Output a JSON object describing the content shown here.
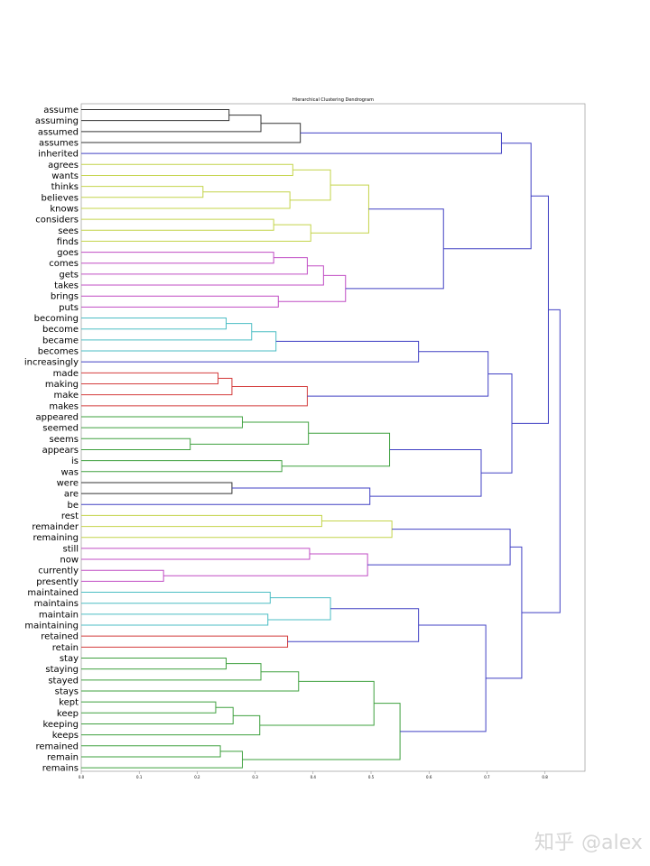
{
  "chart_data": {
    "type": "dendrogram",
    "title": "Hierarchical Clustering Dendrogram",
    "orientation": "horizontal",
    "xlim": [
      0,
      0.87
    ],
    "xticks": [
      "0.0",
      "0.1",
      "0.2",
      "0.3",
      "0.4",
      "0.5",
      "0.6",
      "0.7",
      "0.8"
    ],
    "colors": {
      "black": "#333333",
      "yellow": "#c4d44a",
      "magenta": "#c04cc4",
      "cyan": "#4bbdc4",
      "red": "#d43c3c",
      "green": "#3ea03e",
      "blue": "#4040c4",
      "frame": "#888888"
    },
    "leaves": [
      "assume",
      "assuming",
      "assumed",
      "assumes",
      "inherited",
      "agrees",
      "wants",
      "thinks",
      "believes",
      "knows",
      "considers",
      "sees",
      "finds",
      "goes",
      "comes",
      "gets",
      "takes",
      "brings",
      "puts",
      "becoming",
      "become",
      "became",
      "becomes",
      "increasingly",
      "made",
      "making",
      "make",
      "makes",
      "appeared",
      "seemed",
      "seems",
      "appears",
      "is",
      "was",
      "were",
      "are",
      "be",
      "rest",
      "remainder",
      "remaining",
      "still",
      "now",
      "currently",
      "presently",
      "maintained",
      "maintains",
      "maintain",
      "maintaining",
      "retained",
      "retain",
      "stay",
      "staying",
      "stayed",
      "stays",
      "kept",
      "keep",
      "keeping",
      "keeps",
      "remained",
      "remain",
      "remains"
    ],
    "merges": [
      {
        "id": "c1",
        "left": "assume",
        "right": "assuming",
        "height": 0.255,
        "color": "black"
      },
      {
        "id": "c2",
        "left": "c1",
        "right": "assumed",
        "height": 0.31,
        "color": "black"
      },
      {
        "id": "c3",
        "left": "c2",
        "right": "assumes",
        "height": 0.378,
        "color": "black"
      },
      {
        "id": "c4",
        "left": "c3",
        "right": "inherited",
        "height": 0.725,
        "color": "blue"
      },
      {
        "id": "c5",
        "left": "agrees",
        "right": "wants",
        "height": 0.365,
        "color": "yellow"
      },
      {
        "id": "c6",
        "left": "thinks",
        "right": "believes",
        "height": 0.21,
        "color": "yellow"
      },
      {
        "id": "c7",
        "left": "c6",
        "right": "knows",
        "height": 0.36,
        "color": "yellow"
      },
      {
        "id": "c8",
        "left": "c5",
        "right": "c7",
        "height": 0.43,
        "color": "yellow"
      },
      {
        "id": "c9",
        "left": "considers",
        "right": "sees",
        "height": 0.332,
        "color": "yellow"
      },
      {
        "id": "c10",
        "left": "c9",
        "right": "finds",
        "height": 0.396,
        "color": "yellow"
      },
      {
        "id": "c11",
        "left": "c8",
        "right": "c10",
        "height": 0.496,
        "color": "yellow"
      },
      {
        "id": "c12",
        "left": "goes",
        "right": "comes",
        "height": 0.332,
        "color": "magenta"
      },
      {
        "id": "c13",
        "left": "c12",
        "right": "gets",
        "height": 0.39,
        "color": "magenta"
      },
      {
        "id": "c14",
        "left": "c13",
        "right": "takes",
        "height": 0.418,
        "color": "magenta"
      },
      {
        "id": "c15",
        "left": "brings",
        "right": "puts",
        "height": 0.34,
        "color": "magenta"
      },
      {
        "id": "c16",
        "left": "c14",
        "right": "c15",
        "height": 0.456,
        "color": "magenta"
      },
      {
        "id": "c17",
        "left": "c11",
        "right": "c16",
        "height": 0.625,
        "color": "blue"
      },
      {
        "id": "c18",
        "left": "c4",
        "right": "c17",
        "height": 0.776,
        "color": "blue"
      },
      {
        "id": "c19",
        "left": "becoming",
        "right": "become",
        "height": 0.25,
        "color": "cyan"
      },
      {
        "id": "c20",
        "left": "c19",
        "right": "became",
        "height": 0.294,
        "color": "cyan"
      },
      {
        "id": "c21",
        "left": "c20",
        "right": "becomes",
        "height": 0.336,
        "color": "cyan"
      },
      {
        "id": "c22",
        "left": "c21",
        "right": "increasingly",
        "height": 0.582,
        "color": "blue"
      },
      {
        "id": "c23",
        "left": "made",
        "right": "making",
        "height": 0.236,
        "color": "red"
      },
      {
        "id": "c24",
        "left": "c23",
        "right": "make",
        "height": 0.26,
        "color": "red"
      },
      {
        "id": "c25",
        "left": "c24",
        "right": "makes",
        "height": 0.39,
        "color": "red"
      },
      {
        "id": "c26",
        "left": "c22",
        "right": "c25",
        "height": 0.702,
        "color": "blue"
      },
      {
        "id": "c27",
        "left": "appeared",
        "right": "seemed",
        "height": 0.278,
        "color": "green"
      },
      {
        "id": "c28",
        "left": "seems",
        "right": "appears",
        "height": 0.188,
        "color": "green"
      },
      {
        "id": "c29",
        "left": "c27",
        "right": "c28",
        "height": 0.392,
        "color": "green"
      },
      {
        "id": "c30",
        "left": "is",
        "right": "was",
        "height": 0.346,
        "color": "green"
      },
      {
        "id": "c31",
        "left": "c29",
        "right": "c30",
        "height": 0.532,
        "color": "green"
      },
      {
        "id": "c32",
        "left": "were",
        "right": "are",
        "height": 0.26,
        "color": "black"
      },
      {
        "id": "c33",
        "left": "c32",
        "right": "be",
        "height": 0.498,
        "color": "blue"
      },
      {
        "id": "c34",
        "left": "c31",
        "right": "c33",
        "height": 0.69,
        "color": "blue"
      },
      {
        "id": "c35",
        "left": "c26",
        "right": "c34",
        "height": 0.743,
        "color": "blue"
      },
      {
        "id": "c36",
        "left": "c18",
        "right": "c35",
        "height": 0.806,
        "color": "blue"
      },
      {
        "id": "c37",
        "left": "rest",
        "right": "remainder",
        "height": 0.415,
        "color": "yellow"
      },
      {
        "id": "c38",
        "left": "c37",
        "right": "remaining",
        "height": 0.536,
        "color": "yellow"
      },
      {
        "id": "c39",
        "left": "still",
        "right": "now",
        "height": 0.394,
        "color": "magenta"
      },
      {
        "id": "c40",
        "left": "currently",
        "right": "presently",
        "height": 0.142,
        "color": "magenta"
      },
      {
        "id": "c41",
        "left": "c39",
        "right": "c40",
        "height": 0.494,
        "color": "magenta"
      },
      {
        "id": "c42",
        "left": "c38",
        "right": "c41",
        "height": 0.74,
        "color": "blue"
      },
      {
        "id": "c43",
        "left": "maintained",
        "right": "maintains",
        "height": 0.326,
        "color": "cyan"
      },
      {
        "id": "c44",
        "left": "maintain",
        "right": "maintaining",
        "height": 0.322,
        "color": "cyan"
      },
      {
        "id": "c45",
        "left": "c43",
        "right": "c44",
        "height": 0.43,
        "color": "cyan"
      },
      {
        "id": "c46",
        "left": "retained",
        "right": "retain",
        "height": 0.356,
        "color": "red"
      },
      {
        "id": "c47",
        "left": "c45",
        "right": "c46",
        "height": 0.582,
        "color": "blue"
      },
      {
        "id": "c48",
        "left": "stay",
        "right": "staying",
        "height": 0.25,
        "color": "green"
      },
      {
        "id": "c49",
        "left": "c48",
        "right": "stayed",
        "height": 0.31,
        "color": "green"
      },
      {
        "id": "c50",
        "left": "c49",
        "right": "stays",
        "height": 0.375,
        "color": "green"
      },
      {
        "id": "c51",
        "left": "kept",
        "right": "keep",
        "height": 0.232,
        "color": "green"
      },
      {
        "id": "c52",
        "left": "c51",
        "right": "keeping",
        "height": 0.262,
        "color": "green"
      },
      {
        "id": "c53",
        "left": "c52",
        "right": "keeps",
        "height": 0.308,
        "color": "green"
      },
      {
        "id": "c54",
        "left": "c50",
        "right": "c53",
        "height": 0.505,
        "color": "green"
      },
      {
        "id": "c55",
        "left": "remained",
        "right": "remain",
        "height": 0.24,
        "color": "green"
      },
      {
        "id": "c56",
        "left": "c55",
        "right": "remains",
        "height": 0.278,
        "color": "green"
      },
      {
        "id": "c57",
        "left": "c54",
        "right": "c56",
        "height": 0.55,
        "color": "green"
      },
      {
        "id": "c58",
        "left": "c47",
        "right": "c57",
        "height": 0.698,
        "color": "blue"
      },
      {
        "id": "c59",
        "left": "c42",
        "right": "c58",
        "height": 0.76,
        "color": "blue"
      },
      {
        "id": "c60",
        "left": "c36",
        "right": "c59",
        "height": 0.826,
        "color": "blue"
      }
    ]
  },
  "watermark": {
    "platform": "知乎",
    "user": "@alex"
  }
}
